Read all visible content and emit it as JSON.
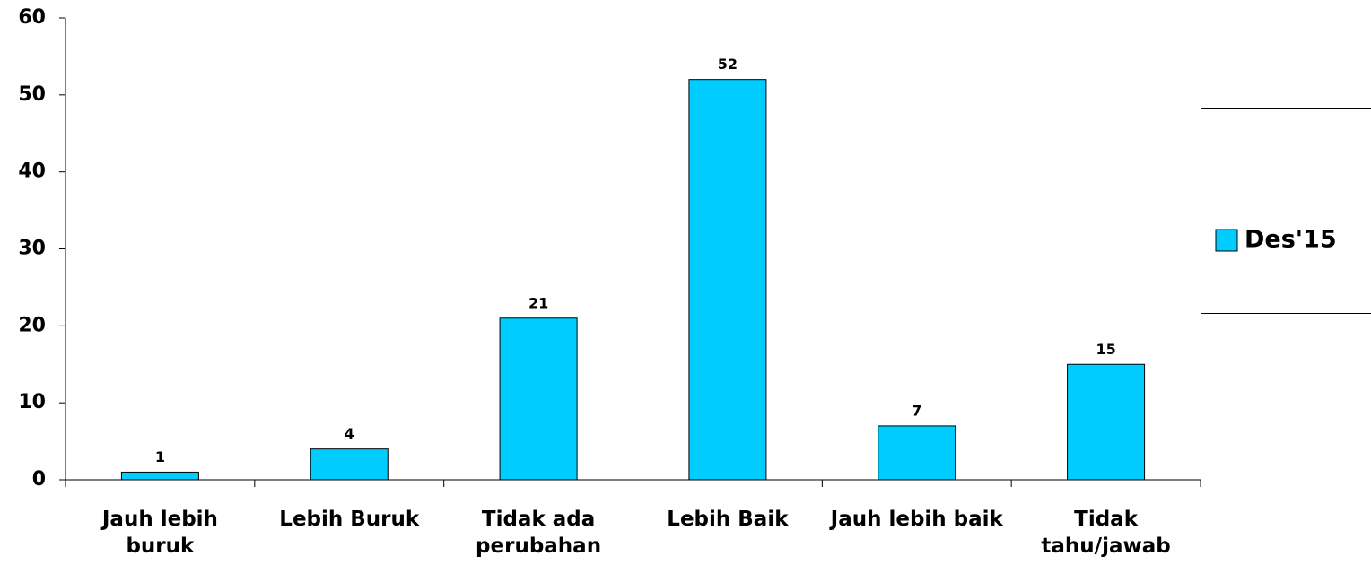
{
  "chart_data": {
    "type": "bar",
    "categories": [
      "Jauh lebih buruk",
      "Lebih Buruk",
      "Tidak ada perubahan",
      "Lebih Baik",
      "Jauh lebih baik",
      "Tidak tahu/jawab"
    ],
    "series": [
      {
        "name": "Des'15",
        "color": "#00ccff",
        "values": [
          1,
          4,
          21,
          52,
          7,
          15
        ]
      }
    ],
    "ylim": [
      0,
      60
    ],
    "yticks": [
      0,
      10,
      20,
      30,
      40,
      50,
      60
    ],
    "grid": false,
    "legend": "right",
    "data_labels": true
  }
}
